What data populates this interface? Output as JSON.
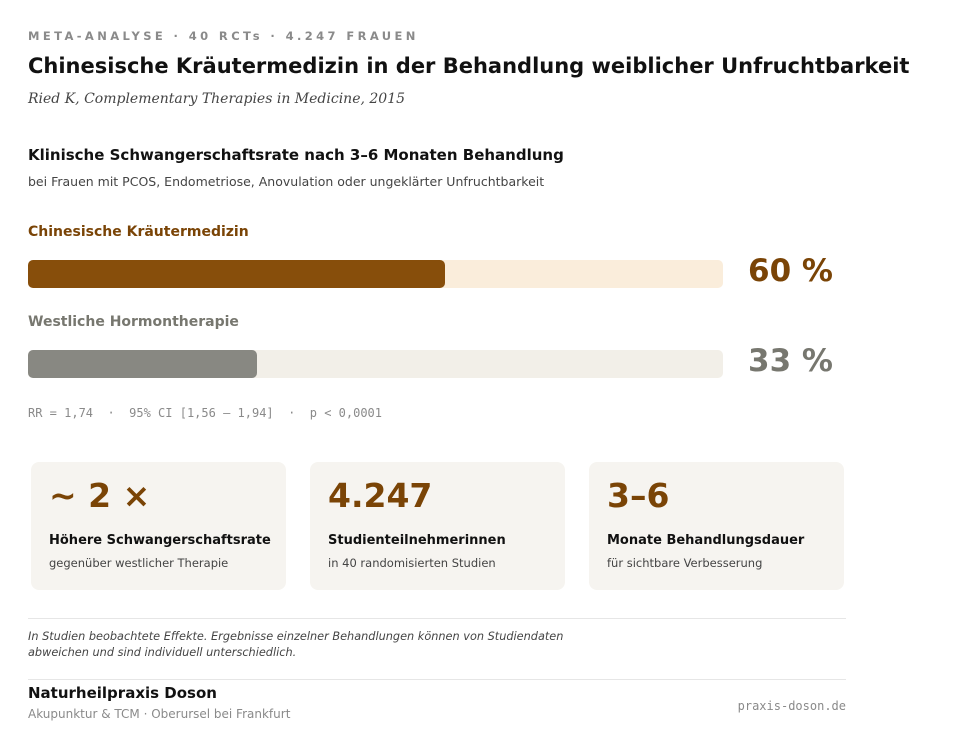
{
  "header": {
    "eyebrow": "META-ANALYSE · 40 RCTs · 4.247 FRAUEN",
    "title": "Chinesische Kräutermedizin in der Behandlung weiblicher Unfruchtbarkeit",
    "source": "Ried K, Complementary Therapies in Medicine, 2015"
  },
  "chart_data": {
    "type": "bar",
    "title": "Klinische Schwangerschaftsrate nach 3–6 Monaten Behandlung",
    "subtitle": "bei Frauen mit PCOS, Endometriose, Anovulation oder ungeklärter Unfruchtbarkeit",
    "orientation": "horizontal",
    "ylim": [
      0,
      100
    ],
    "categories": [
      "Chinesische Kräutermedizin",
      "Westliche Hormontherapie"
    ],
    "values": [
      60,
      33
    ],
    "value_labels": [
      "60 %",
      "33 %"
    ],
    "colors": [
      "#874e0b",
      "#888882"
    ],
    "track_colors": [
      "#faeddb",
      "#f2efe8"
    ],
    "label_colors": [
      "#7a4406",
      "#77776f"
    ],
    "annotation": "RR = 1,74  ·  95% CI [1,56 – 1,94]  ·  p < 0,0001"
  },
  "cards": [
    {
      "value": "~ 2 ×",
      "title": "Höhere Schwangerschaftsrate",
      "subtitle": "gegenüber westlicher Therapie"
    },
    {
      "value": "4.247",
      "title": "Studienteilnehmerinnen",
      "subtitle": "in 40 randomisierten Studien"
    },
    {
      "value": "3–6",
      "title": "Monate Behandlungsdauer",
      "subtitle": "für sichtbare Verbesserung"
    }
  ],
  "disclaimer": "In Studien beobachtete Effekte. Ergebnisse einzelner Behandlungen können von Studiendaten abweichen und sind individuell unterschiedlich.",
  "footer": {
    "brand": "Naturheilpraxis Doson",
    "tagline": "Akupunktur & TCM · Oberursel bei Frankfurt",
    "url": "praxis-doson.de"
  }
}
